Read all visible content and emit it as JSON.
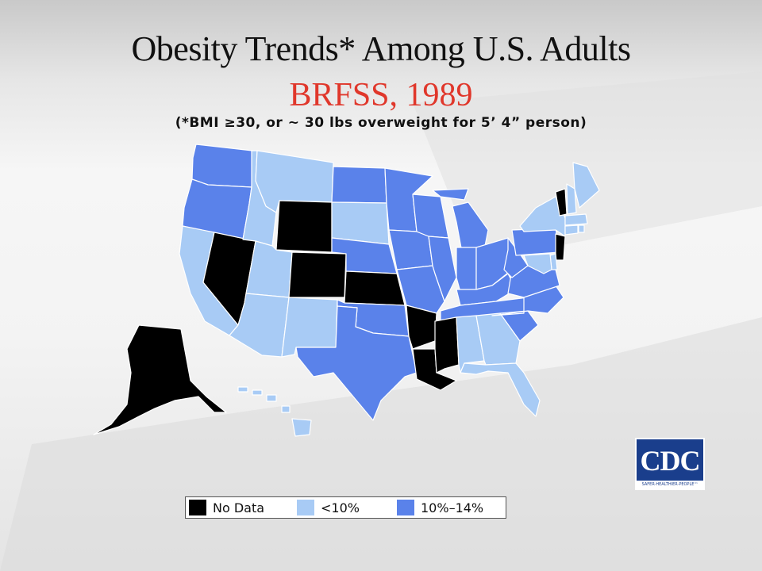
{
  "title": "Obesity Trends* Among U.S. Adults",
  "subtitle": "BRFSS, 1989",
  "note": "(*BMI ≥30, or ~ 30 lbs overweight for 5’ 4” person)",
  "legend": [
    {
      "label": "No Data",
      "color": "#000000"
    },
    {
      "label": "<10%",
      "color": "#a8cbf5"
    },
    {
      "label": "10%–14%",
      "color": "#5a82ea"
    }
  ],
  "logo": {
    "text": "CDC",
    "tagline": "SAFER·HEALTHIER·PEOPLE™"
  },
  "map_data": {
    "categories": {
      "no_data": "#000000",
      "lt10": "#a8cbf5",
      "10to14": "#5a82ea"
    },
    "states": {
      "Washington": "10to14",
      "Oregon": "10to14",
      "California": "lt10",
      "Nevada": "no_data",
      "Idaho": "lt10",
      "Montana": "lt10",
      "Wyoming": "no_data",
      "Utah": "lt10",
      "Arizona": "lt10",
      "Colorado": "no_data",
      "New Mexico": "lt10",
      "North Dakota": "10to14",
      "South Dakota": "lt10",
      "Nebraska": "10to14",
      "Kansas": "no_data",
      "Oklahoma": "10to14",
      "Texas": "10to14",
      "Minnesota": "10to14",
      "Iowa": "10to14",
      "Missouri": "10to14",
      "Arkansas": "no_data",
      "Louisiana": "no_data",
      "Wisconsin": "10to14",
      "Illinois": "10to14",
      "Michigan": "10to14",
      "Indiana": "10to14",
      "Ohio": "10to14",
      "Kentucky": "10to14",
      "Tennessee": "10to14",
      "Mississippi": "no_data",
      "Alabama": "lt10",
      "Georgia": "lt10",
      "Florida": "lt10",
      "South Carolina": "10to14",
      "North Carolina": "10to14",
      "Virginia": "10to14",
      "West Virginia": "10to14",
      "Pennsylvania": "10to14",
      "New York": "lt10",
      "Vermont": "no_data",
      "New Hampshire": "lt10",
      "Maine": "lt10",
      "Massachusetts": "lt10",
      "Connecticut": "lt10",
      "Rhode Island": "lt10",
      "New Jersey": "no_data",
      "Delaware": "lt10",
      "Maryland": "lt10",
      "Alaska": "no_data",
      "Hawaii": "lt10"
    }
  }
}
